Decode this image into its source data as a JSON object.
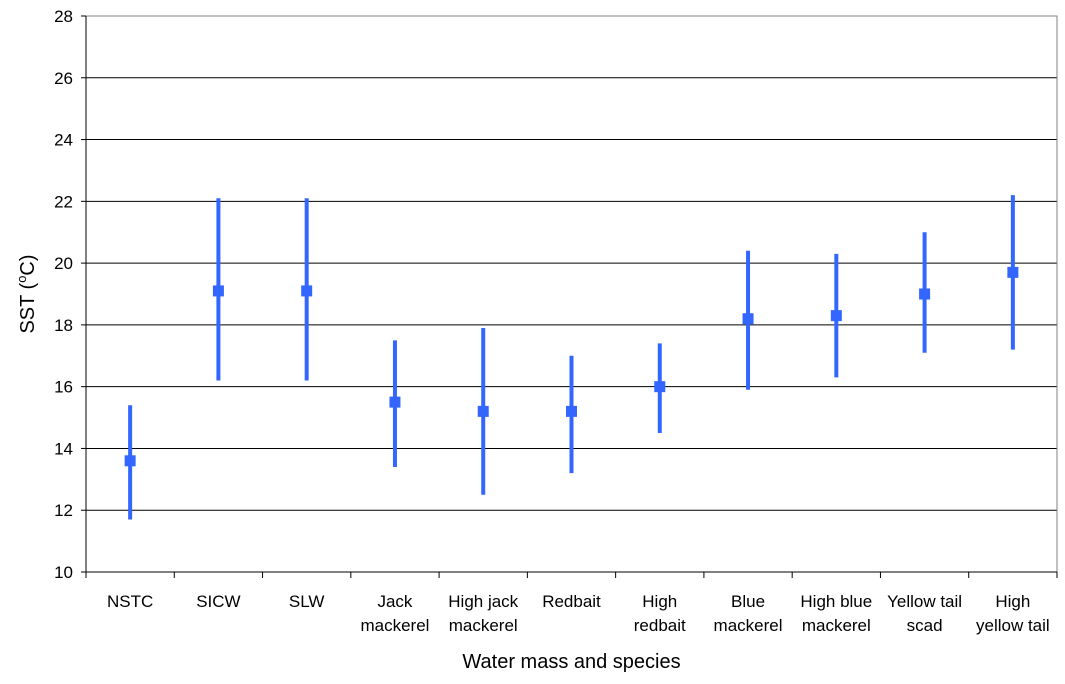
{
  "chart_data": {
    "type": "scatter",
    "subtype": "range-with-mean",
    "title": "",
    "xlabel": "Water mass and species",
    "ylabel_parts": {
      "pre": "SST (",
      "sup": "o",
      "post": "C)"
    },
    "ylim": [
      10,
      28
    ],
    "ytick_step": 2,
    "grid": true,
    "legend": "none",
    "colors": {
      "series": "#3366ff",
      "grid": "#000000",
      "axis": "#808080"
    },
    "categories": [
      [
        "NSTC"
      ],
      [
        "SICW"
      ],
      [
        "SLW"
      ],
      [
        "Jack",
        "mackerel"
      ],
      [
        "High jack",
        "mackerel"
      ],
      [
        "Redbait"
      ],
      [
        "High",
        "redbait"
      ],
      [
        "Blue",
        "mackerel"
      ],
      [
        "High blue",
        "mackerel"
      ],
      [
        "Yellow tail",
        "scad"
      ],
      [
        "High",
        "yellow tail"
      ]
    ],
    "means": [
      13.6,
      19.1,
      19.1,
      15.5,
      15.2,
      15.2,
      16.0,
      18.2,
      18.3,
      19.0,
      19.7
    ],
    "lows": [
      11.7,
      16.2,
      16.2,
      13.4,
      12.5,
      13.2,
      14.5,
      15.9,
      16.3,
      17.1,
      17.2
    ],
    "highs": [
      15.4,
      22.1,
      22.1,
      17.5,
      17.9,
      17.0,
      17.4,
      20.4,
      20.3,
      21.0,
      22.2
    ]
  }
}
